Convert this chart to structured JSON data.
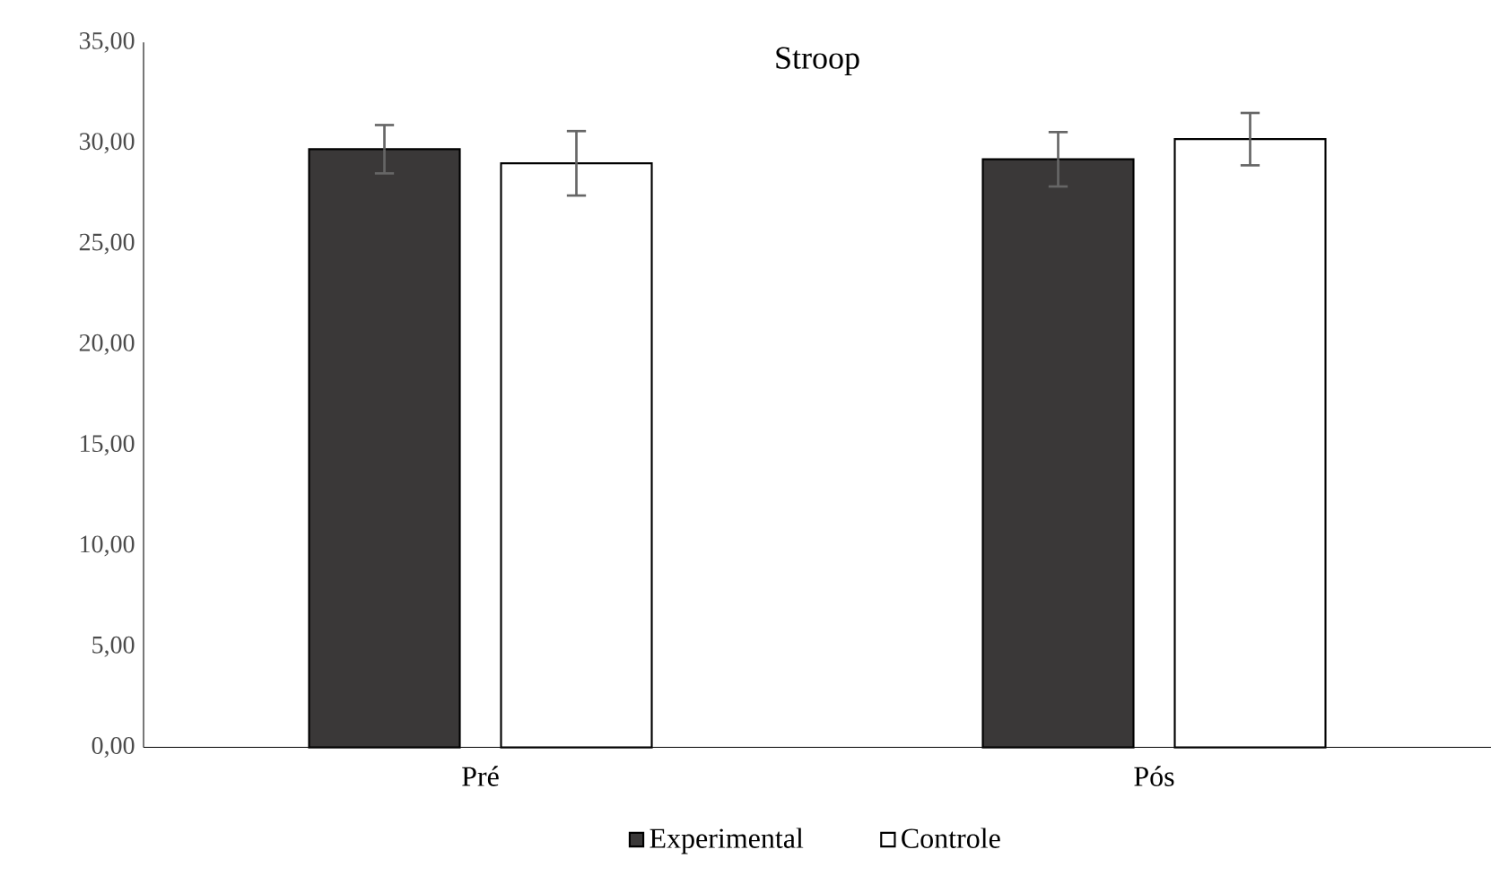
{
  "chart_data": {
    "type": "bar",
    "title": "Stroop",
    "categories": [
      "Pré",
      "Pós"
    ],
    "series": [
      {
        "name": "Experimental",
        "color": "#3a3838",
        "values": [
          29.7,
          29.2
        ],
        "errors": [
          1.2,
          1.35
        ]
      },
      {
        "name": "Controle",
        "color": "#ffffff",
        "values": [
          29.0,
          30.2
        ],
        "errors": [
          1.6,
          1.3
        ]
      }
    ],
    "ylim": [
      0,
      35
    ],
    "yticks": [
      {
        "value": 0,
        "label": "0,00"
      },
      {
        "value": 5,
        "label": "5,00"
      },
      {
        "value": 10,
        "label": "10,00"
      },
      {
        "value": 15,
        "label": "15,00"
      },
      {
        "value": 20,
        "label": "20,00"
      },
      {
        "value": 25,
        "label": "25,00"
      },
      {
        "value": 30,
        "label": "30,00"
      },
      {
        "value": 35,
        "label": "35,00"
      }
    ],
    "grid": false,
    "legend": "bottom"
  }
}
